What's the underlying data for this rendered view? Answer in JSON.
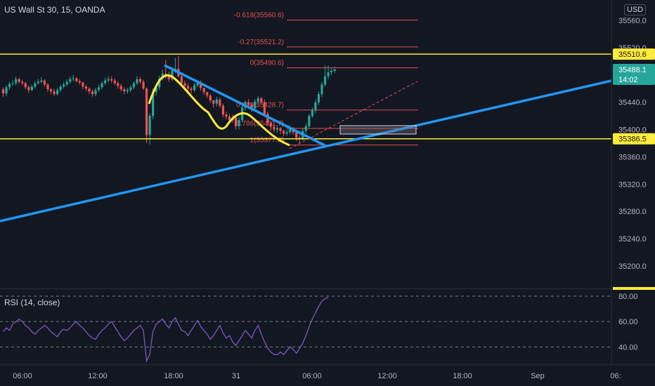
{
  "header": {
    "title": "US Wall St 30, 15, OANDA",
    "currency": "USD"
  },
  "rsi": {
    "label": "RSI (14, close)",
    "levels": [
      40,
      60,
      80
    ],
    "ylim": [
      28,
      85
    ],
    "tick_labels": [
      "80.00",
      "60.00",
      "40.00"
    ],
    "values": [
      52,
      55,
      53,
      58,
      60,
      62,
      60,
      57,
      55,
      52,
      50,
      53,
      55,
      57,
      55,
      52,
      50,
      48,
      52,
      54,
      53,
      55,
      58,
      60,
      57,
      55,
      52,
      49,
      47,
      46,
      50,
      53,
      55,
      58,
      60,
      56,
      52,
      48,
      45,
      47,
      50,
      53,
      55,
      57,
      53,
      29,
      34,
      52,
      58,
      60,
      62,
      58,
      55,
      60,
      63,
      58,
      53,
      52,
      49,
      53,
      57,
      61,
      56,
      53,
      50,
      46,
      49,
      53,
      57,
      51,
      47,
      49,
      44,
      41,
      45,
      49,
      53,
      50,
      47,
      53,
      57,
      50,
      44,
      39,
      36,
      34,
      34,
      36,
      34,
      37,
      40,
      38,
      35,
      39,
      43,
      49,
      56,
      62,
      67,
      72,
      76,
      78,
      79
    ]
  },
  "chart_data": {
    "type": "candlestick",
    "title": "US Wall St 30, 15, OANDA",
    "xlabel": "",
    "ylabel": "",
    "x_ticks": [
      "06:00",
      "12:00",
      "18:00",
      "31",
      "06:00",
      "12:00",
      "18:00",
      "Sep",
      "06:"
    ],
    "y_ticks": [
      "35560.0",
      "35520.0",
      "35480.0",
      "35440.0",
      "35400.0",
      "35360.0",
      "35320.0",
      "35280.0",
      "35240.0",
      "35200.0"
    ],
    "ylim": [
      35168,
      35590
    ],
    "grid": false,
    "price_badges": [
      {
        "label": "35510.6",
        "value": 35510.6,
        "color": "#ffeb3b"
      },
      {
        "label": "35488.1",
        "sublabel": "14:02",
        "value": 35488.1,
        "color": "#26a69a"
      },
      {
        "label": "35386.5",
        "value": 35386.5,
        "color": "#ffeb3b"
      }
    ],
    "horizontal_lines": [
      35510.6,
      35386.5
    ],
    "fib_levels": [
      {
        "label": "-0.618(35560.6)",
        "value": 35560.6
      },
      {
        "label": "-0.27(35521.2)",
        "value": 35521.2
      },
      {
        "label": "0(35490.6)",
        "value": 35490.6
      },
      {
        "label": "0.618(35428.7)",
        "value": 35428.7
      },
      {
        "label": "0.786(35401.7)",
        "value": 35401.7
      },
      {
        "label": "1(35377.3)",
        "value": 35377.3
      }
    ],
    "open": [
      35459,
      35453,
      35462,
      35467,
      35468,
      35474,
      35470,
      35468,
      35462,
      35458,
      35463,
      35468,
      35470,
      35472,
      35466,
      35459,
      35456,
      35452,
      35458,
      35463,
      35466,
      35470,
      35474,
      35475,
      35471,
      35469,
      35463,
      35460,
      35456,
      35452,
      35458,
      35462,
      35468,
      35472,
      35474,
      35472,
      35468,
      35464,
      35459,
      35456,
      35458,
      35462,
      35468,
      35474,
      35470,
      35460,
      35392,
      35420,
      35455,
      35462,
      35475,
      35482,
      35478,
      35474,
      35486,
      35489,
      35478,
      35468,
      35464,
      35460,
      35458,
      35465,
      35469,
      35461,
      35455,
      35450,
      35443,
      35438,
      35444,
      35435,
      35422,
      35419,
      35414,
      35418,
      35405,
      35414,
      35432,
      35440,
      35436,
      35431,
      35441,
      35446,
      35440,
      35423,
      35410,
      35404,
      35400,
      35402,
      35398,
      35394,
      35396,
      35402,
      35396,
      35388,
      35386,
      35398,
      35405,
      35420,
      35428,
      35440,
      35452,
      35466,
      35478,
      35484,
      35486
    ],
    "close": [
      35453,
      35462,
      35467,
      35468,
      35474,
      35470,
      35468,
      35462,
      35458,
      35463,
      35468,
      35470,
      35472,
      35466,
      35459,
      35456,
      35452,
      35458,
      35463,
      35466,
      35470,
      35474,
      35475,
      35471,
      35469,
      35463,
      35460,
      35456,
      35452,
      35458,
      35462,
      35468,
      35472,
      35474,
      35472,
      35468,
      35464,
      35459,
      35456,
      35458,
      35462,
      35468,
      35474,
      35470,
      35460,
      35392,
      35420,
      35455,
      35462,
      35475,
      35482,
      35478,
      35474,
      35486,
      35489,
      35478,
      35468,
      35464,
      35460,
      35458,
      35465,
      35469,
      35461,
      35455,
      35450,
      35443,
      35438,
      35444,
      35435,
      35422,
      35419,
      35414,
      35418,
      35405,
      35414,
      35432,
      35440,
      35436,
      35431,
      35441,
      35446,
      35440,
      35423,
      35410,
      35404,
      35400,
      35402,
      35398,
      35394,
      35396,
      35402,
      35396,
      35388,
      35386,
      35398,
      35405,
      35420,
      35428,
      35440,
      35452,
      35466,
      35478,
      35484,
      35486,
      35488
    ],
    "high": [
      35462,
      35465,
      35470,
      35472,
      35478,
      35476,
      35473,
      35470,
      35465,
      35466,
      35471,
      35474,
      35477,
      35474,
      35468,
      35461,
      35460,
      35461,
      35466,
      35470,
      35474,
      35478,
      35480,
      35477,
      35474,
      35470,
      35466,
      35462,
      35459,
      35461,
      35466,
      35471,
      35476,
      35478,
      35478,
      35475,
      35471,
      35467,
      35462,
      35461,
      35465,
      35471,
      35478,
      35477,
      35473,
      35462,
      35424,
      35460,
      35466,
      35479,
      35488,
      35502,
      35485,
      35490,
      35505,
      35508,
      35482,
      35472,
      35468,
      35463,
      35468,
      35473,
      35472,
      35460,
      35454,
      35452,
      35441,
      35448,
      35447,
      35438,
      35426,
      35423,
      35422,
      35419,
      35418,
      35436,
      35443,
      35445,
      35439,
      35445,
      35449,
      35448,
      35444,
      35426,
      35412,
      35409,
      35406,
      35404,
      35400,
      35400,
      35406,
      35404,
      35398,
      35392,
      35402,
      35409,
      35423,
      35432,
      35444,
      35456,
      35470,
      35494,
      35494,
      35490,
      35492
    ],
    "low": [
      35448,
      35449,
      35458,
      35464,
      35465,
      35467,
      35465,
      35459,
      35454,
      35456,
      35460,
      35466,
      35468,
      35463,
      35455,
      35452,
      35449,
      35450,
      35455,
      35460,
      35463,
      35467,
      35471,
      35469,
      35466,
      35459,
      35456,
      35452,
      35448,
      35449,
      35455,
      35459,
      35465,
      35469,
      35469,
      35465,
      35460,
      35456,
      35452,
      35453,
      35455,
      35459,
      35465,
      35467,
      35458,
      35380,
      35378,
      35415,
      35450,
      35458,
      35472,
      35474,
      35470,
      35471,
      35483,
      35476,
      35463,
      35460,
      35456,
      35453,
      35455,
      35462,
      35457,
      35451,
      35446,
      35439,
      35432,
      35434,
      35432,
      35418,
      35415,
      35410,
      35410,
      35400,
      35400,
      35410,
      35428,
      35432,
      35426,
      35427,
      35438,
      35437,
      35419,
      35405,
      35398,
      35396,
      35395,
      35393,
      35390,
      35391,
      35393,
      35392,
      35383,
      35379,
      35384,
      35394,
      35402,
      35417,
      35424,
      35436,
      35448,
      35463,
      35474,
      35480,
      35483
    ]
  }
}
